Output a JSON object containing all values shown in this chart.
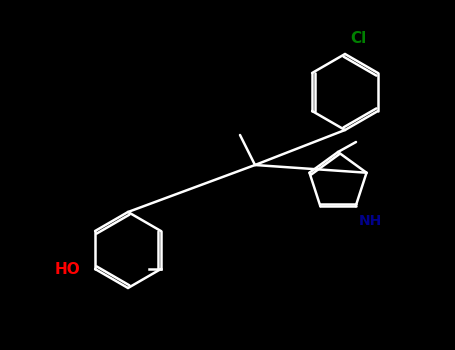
{
  "background": "#000000",
  "bond_color": "#ffffff",
  "atom_colors": {
    "O": "#ff0000",
    "N": "#00008b",
    "Cl": "#008000",
    "C": "#ffffff"
  },
  "lw": 1.8,
  "font_size": 11
}
